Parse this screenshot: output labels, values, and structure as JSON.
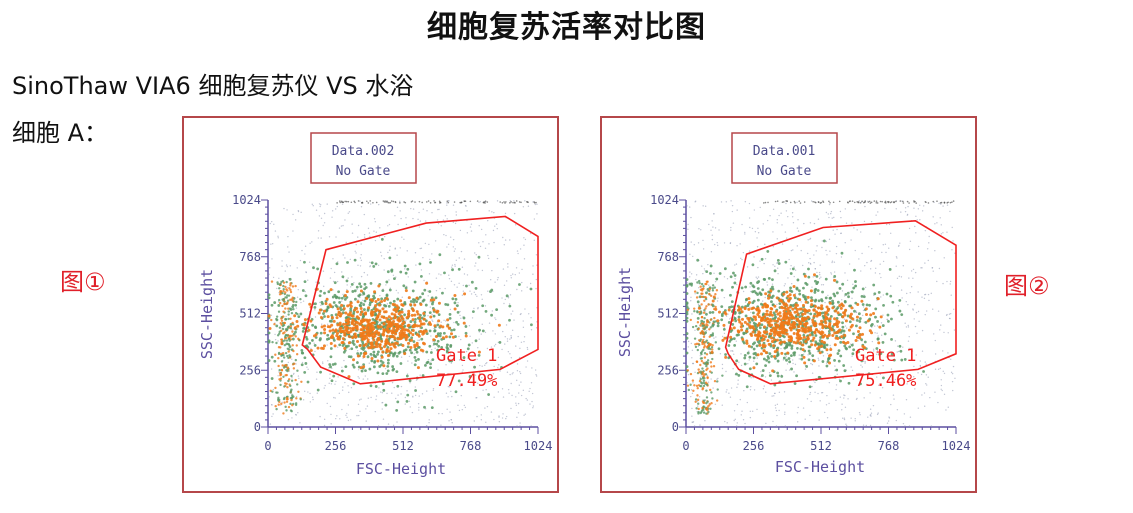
{
  "page": {
    "title": "细胞复苏活率对比图",
    "subtitle": "SinoThaw VIA6 细胞复苏仪 VS 水浴",
    "cell_label": "细胞 A："
  },
  "colors": {
    "frame": "#b5474a",
    "gate": "#f02020",
    "axis": "#5c4fa0",
    "dot_orange": "#f07a1a",
    "dot_green": "#5a9a66",
    "dot_grey": "#9aa0b8"
  },
  "chart_data": [
    {
      "type": "scatter",
      "figure_label": "图①",
      "header_line1": "Data.002",
      "header_line2": "No Gate",
      "xlabel": "FSC-Height",
      "ylabel": "SSC-Height",
      "xlim": [
        0,
        1024
      ],
      "ylim": [
        0,
        1024
      ],
      "xticks": [
        "0",
        "256",
        "512",
        "768",
        "1024"
      ],
      "yticks": [
        "0",
        "256",
        "512",
        "768",
        "1024"
      ],
      "gate_name": "Gate 1",
      "gate_percent": "77.49%",
      "gate_polygon": [
        [
          130,
          370
        ],
        [
          220,
          800
        ],
        [
          600,
          920
        ],
        [
          900,
          950
        ],
        [
          1024,
          860
        ],
        [
          1024,
          350
        ],
        [
          880,
          260
        ],
        [
          350,
          195
        ],
        [
          200,
          270
        ],
        [
          150,
          350
        ]
      ],
      "cluster_center": [
        420,
        450
      ]
    },
    {
      "type": "scatter",
      "figure_label": "图②",
      "header_line1": "Data.001",
      "header_line2": "No Gate",
      "xlabel": "FSC-Height",
      "ylabel": "SSC-Height",
      "xlim": [
        0,
        1024
      ],
      "ylim": [
        0,
        1024
      ],
      "xticks": [
        "0",
        "256",
        "512",
        "768",
        "1024"
      ],
      "yticks": [
        "0",
        "256",
        "512",
        "768",
        "1024"
      ],
      "gate_name": "Gate 1",
      "gate_percent": "75.46%",
      "gate_polygon": [
        [
          150,
          360
        ],
        [
          230,
          780
        ],
        [
          520,
          900
        ],
        [
          870,
          930
        ],
        [
          1024,
          820
        ],
        [
          1024,
          330
        ],
        [
          880,
          260
        ],
        [
          320,
          195
        ],
        [
          200,
          260
        ],
        [
          160,
          330
        ]
      ],
      "cluster_center": [
        400,
        460
      ]
    }
  ]
}
